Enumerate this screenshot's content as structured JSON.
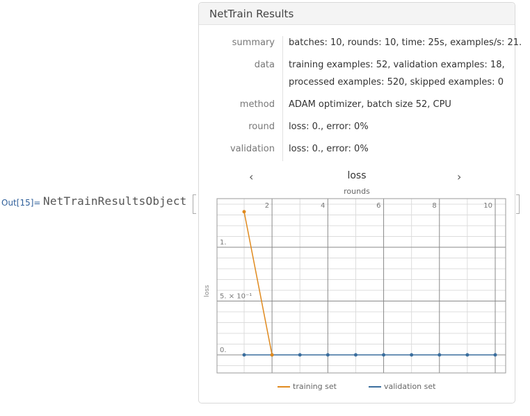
{
  "out": {
    "label": "Out[15]=",
    "head": "NetTrainResultsObject"
  },
  "panel": {
    "title": "NetTrain Results",
    "rows": [
      {
        "label": "summary",
        "lines": [
          "batches: 10, rounds: 10, time: 25s, examples/s: 21."
        ]
      },
      {
        "label": "data",
        "lines": [
          "training examples: 52, validation examples: 18,",
          "processed examples: 520, skipped examples: 0"
        ]
      },
      {
        "label": "method",
        "lines": [
          "ADAM optimizer, batch size 52, CPU"
        ]
      },
      {
        "label": "round",
        "lines": [
          "loss: 0., error: 0%"
        ]
      },
      {
        "label": "validation",
        "lines": [
          "loss: 0., error: 0%"
        ]
      }
    ]
  },
  "plot_nav": {
    "prev": "‹",
    "next": "›",
    "name": "loss",
    "prev_icon": "chevron-left-icon",
    "next_icon": "chevron-right-icon"
  },
  "chart_data": {
    "type": "line",
    "xlabel": "rounds",
    "ylabel": "loss",
    "xlim": [
      0.5,
      10.2
    ],
    "ylim": [
      -0.35,
      1.55
    ],
    "x_ticks": [
      "2",
      "4",
      "6",
      "8",
      "10"
    ],
    "y_ticks": [
      "1.",
      "5. × 10⁻¹",
      "0."
    ],
    "grid": true,
    "legend_position": "bottom",
    "series": [
      {
        "name": "training set",
        "color": "#e08a1e",
        "x": [
          1,
          2
        ],
        "y": [
          1.33,
          0
        ]
      },
      {
        "name": "validation set",
        "color": "#3a6e9e",
        "x": [
          1,
          2,
          3,
          4,
          5,
          6,
          7,
          8,
          9,
          10
        ],
        "y": [
          0,
          0,
          0,
          0,
          0,
          0,
          0,
          0,
          0,
          0
        ]
      }
    ]
  }
}
